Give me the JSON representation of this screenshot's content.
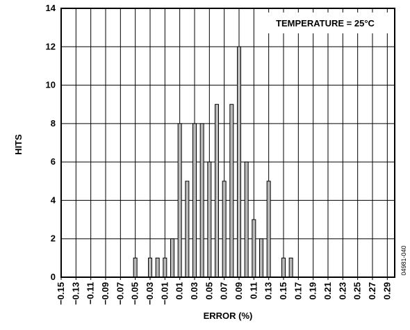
{
  "chart_data": {
    "type": "bar",
    "xlabel": "ERROR (%)",
    "ylabel": "HITS",
    "xlim": [
      -0.15,
      0.3
    ],
    "ylim": [
      0,
      14
    ],
    "grid": true,
    "x_ticks": [
      "-0.15",
      "-0.13",
      "-0.11",
      "-0.09",
      "-0.07",
      "-0.05",
      "-0.03",
      "-0.01",
      "0.01",
      "0.03",
      "0.05",
      "0.07",
      "0.09",
      "0.11",
      "0.13",
      "0.15",
      "0.17",
      "0.19",
      "0.21",
      "0.23",
      "0.25",
      "0.27",
      "0.29"
    ],
    "y_ticks": [
      "0",
      "2",
      "4",
      "6",
      "8",
      "10",
      "12",
      "14"
    ],
    "bars": [
      {
        "x": -0.05,
        "value": 1
      },
      {
        "x": -0.03,
        "value": 1
      },
      {
        "x": -0.02,
        "value": 1
      },
      {
        "x": -0.01,
        "value": 1
      },
      {
        "x": 0.0,
        "value": 2
      },
      {
        "x": 0.01,
        "value": 8
      },
      {
        "x": 0.02,
        "value": 5
      },
      {
        "x": 0.03,
        "value": 8
      },
      {
        "x": 0.04,
        "value": 8
      },
      {
        "x": 0.05,
        "value": 6
      },
      {
        "x": 0.06,
        "value": 9
      },
      {
        "x": 0.07,
        "value": 5
      },
      {
        "x": 0.08,
        "value": 9
      },
      {
        "x": 0.09,
        "value": 12
      },
      {
        "x": 0.1,
        "value": 6
      },
      {
        "x": 0.11,
        "value": 3
      },
      {
        "x": 0.12,
        "value": 2
      },
      {
        "x": 0.13,
        "value": 5
      },
      {
        "x": 0.15,
        "value": 1
      },
      {
        "x": 0.16,
        "value": 1
      }
    ],
    "annotation": "TEMPERATURE = 25°C",
    "annotation_placement": "top-right",
    "figure_id": "04981-040",
    "colors": {
      "bar_fill": "#b8b8b8",
      "bar_stroke": "#000000",
      "grid": "#000000"
    }
  }
}
